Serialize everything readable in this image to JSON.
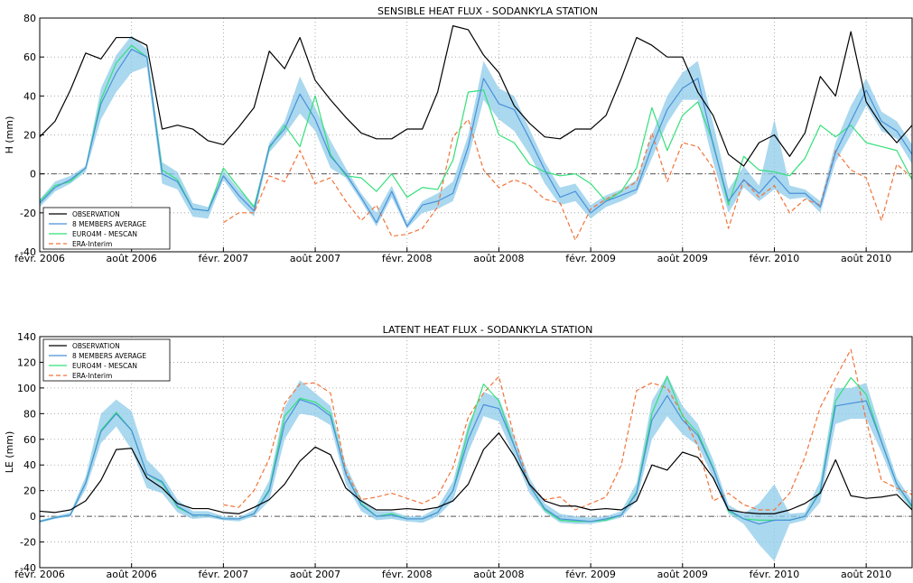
{
  "chart_data": [
    {
      "type": "line",
      "title": "SENSIBLE HEAT FLUX - SODANKYLA STATION",
      "xlabel": "",
      "ylabel": "H (mm)",
      "ylim": [
        -40,
        80
      ],
      "yticks": [
        -40,
        -20,
        0,
        20,
        40,
        60,
        80
      ],
      "x_range": [
        2006.0833,
        2010.8333
      ],
      "xticks": [
        {
          "x": 2006.0833,
          "label": "févr. 2006"
        },
        {
          "x": 2006.5833,
          "label": "août 2006"
        },
        {
          "x": 2007.0833,
          "label": "févr. 2007"
        },
        {
          "x": 2007.5833,
          "label": "août 2007"
        },
        {
          "x": 2008.0833,
          "label": "févr. 2008"
        },
        {
          "x": 2008.5833,
          "label": "août 2008"
        },
        {
          "x": 2009.0833,
          "label": "févr. 2009"
        },
        {
          "x": 2009.5833,
          "label": "août 2009"
        },
        {
          "x": 2010.0833,
          "label": "févr. 2010"
        },
        {
          "x": 2010.5833,
          "label": "août 2010"
        }
      ],
      "grid": true,
      "zero_line": true,
      "legend_position": "lower-left",
      "legend": [
        "OBSERVATION",
        "8 MEMBERS AVERAGE",
        "EURO4M - MESCAN",
        "ERA-Interim"
      ],
      "series": [
        {
          "name": "OBSERVATION",
          "color": "#000000",
          "style": "solid",
          "x_start": 2006.0833,
          "values": [
            19,
            27,
            43,
            62,
            59,
            70,
            70,
            66,
            23,
            25,
            23,
            17,
            15,
            24,
            34,
            63,
            54,
            70,
            48,
            38,
            29,
            21,
            18,
            18,
            23,
            23,
            42,
            76,
            74,
            61,
            52,
            35,
            26,
            19,
            18,
            23,
            23,
            30,
            49,
            70,
            66,
            60,
            60,
            42,
            30,
            10,
            4,
            16,
            20,
            9,
            21,
            50,
            40,
            73,
            37,
            25,
            16,
            25,
            13
          ]
        },
        {
          "name": "8 MEMBERS AVERAGE",
          "color": "#4a90d9",
          "style": "solid",
          "x_start": 2006.0833,
          "band_lower": [
            -17,
            -9,
            -5,
            1,
            28,
            42,
            52,
            55,
            -5,
            -8,
            -22,
            -23,
            -3,
            -14,
            -22,
            11,
            20,
            31,
            22,
            3,
            -2,
            -14,
            -27,
            -12,
            -28,
            -20,
            -18,
            -14,
            8,
            38,
            28,
            22,
            10,
            -5,
            -16,
            -14,
            -23,
            -17,
            -14,
            -10,
            8,
            26,
            38,
            38,
            6,
            -20,
            -7,
            -14,
            -8,
            -13,
            -12,
            -20,
            6,
            20,
            35,
            22,
            18,
            5,
            -24,
            -14,
            -12
          ],
          "band_upper": [
            -13,
            -4,
            -1,
            4,
            44,
            61,
            71,
            64,
            6,
            1,
            -15,
            -17,
            2,
            -8,
            -16,
            16,
            27,
            50,
            34,
            17,
            3,
            -10,
            -20,
            -6,
            -25,
            -14,
            -10,
            -4,
            20,
            58,
            44,
            40,
            23,
            6,
            -7,
            -5,
            -16,
            -11,
            -8,
            -3,
            20,
            40,
            52,
            58,
            26,
            -8,
            4,
            -6,
            28,
            -6,
            -8,
            -14,
            16,
            35,
            49,
            32,
            27,
            15,
            -16,
            -6,
            -7
          ],
          "values": [
            -15,
            -7,
            -3,
            3,
            36,
            52,
            64,
            60,
            0,
            -4,
            -18,
            -19,
            -1,
            -11,
            -19,
            14,
            23,
            41,
            28,
            9,
            0,
            -12,
            -25,
            -9,
            -27,
            -16,
            -14,
            -10,
            14,
            49,
            36,
            33,
            18,
            2,
            -12,
            -9,
            -20,
            -14,
            -11,
            -8,
            14,
            33,
            44,
            49,
            15,
            -14,
            -3,
            -10,
            -1,
            -10,
            -10,
            -17,
            11,
            27,
            43,
            27,
            22,
            10,
            -20,
            -10,
            -10
          ]
        },
        {
          "name": "EURO4M - MESCAN",
          "color": "#33e07a",
          "style": "solid",
          "x_start": 2006.0833,
          "values": [
            -14,
            -6,
            -4,
            3,
            38,
            57,
            66,
            60,
            2,
            -3,
            -18,
            -19,
            3,
            -7,
            -17,
            13,
            25,
            14,
            40,
            10,
            -1,
            -2,
            -9,
            0,
            -12,
            -7,
            -8,
            7,
            42,
            43,
            20,
            16,
            5,
            1,
            -1,
            0,
            -5,
            -14,
            -9,
            3,
            34,
            12,
            30,
            37,
            16,
            -16,
            9,
            2,
            1,
            -1,
            8,
            25,
            19,
            25,
            16,
            14,
            12,
            -3,
            0,
            -1
          ]
        },
        {
          "name": "ERA-Interim",
          "color": "#f2733a",
          "style": "dashed",
          "x_start": 2007.0833,
          "values": [
            -25,
            -20,
            -20,
            -1,
            -4,
            12,
            -5,
            -2,
            -14,
            -24,
            -16,
            -32,
            -31,
            -28,
            -17,
            19,
            28,
            2,
            -7,
            -3,
            -6,
            -13,
            -15,
            -34,
            -18,
            -13,
            -9,
            -4,
            21,
            -4,
            16,
            14,
            3,
            -28,
            -3,
            -12,
            -6,
            -20,
            -13,
            -16,
            12,
            2,
            -2,
            -24,
            5,
            -2,
            -22,
            10,
            -1
          ]
        }
      ]
    },
    {
      "type": "line",
      "title": "LATENT HEAT FLUX - SODANKYLA STATION",
      "xlabel": "",
      "ylabel": "LE (mm)",
      "ylim": [
        -40,
        140
      ],
      "yticks": [
        -40,
        -20,
        0,
        20,
        40,
        60,
        80,
        100,
        120,
        140
      ],
      "x_range": [
        2006.0833,
        2010.8333
      ],
      "xticks": [
        {
          "x": 2006.0833,
          "label": "févr. 2006"
        },
        {
          "x": 2006.5833,
          "label": "août 2006"
        },
        {
          "x": 2007.0833,
          "label": "févr. 2007"
        },
        {
          "x": 2007.5833,
          "label": "août 2007"
        },
        {
          "x": 2008.0833,
          "label": "févr. 2008"
        },
        {
          "x": 2008.5833,
          "label": "août 2008"
        },
        {
          "x": 2009.0833,
          "label": "févr. 2009"
        },
        {
          "x": 2009.5833,
          "label": "août 2009"
        },
        {
          "x": 2010.0833,
          "label": "févr. 2010"
        },
        {
          "x": 2010.5833,
          "label": "août 2010"
        }
      ],
      "grid": true,
      "zero_line": true,
      "legend_position": "upper-left",
      "legend": [
        "OBSERVATION",
        "8 MEMBERS AVERAGE",
        "EURO4M - MESCAN",
        "ERA-Interim"
      ],
      "series": [
        {
          "name": "OBSERVATION",
          "color": "#000000",
          "style": "solid",
          "x_start": 2006.0833,
          "values": [
            4,
            3,
            5,
            12,
            28,
            52,
            53,
            30,
            22,
            10,
            6,
            6,
            3,
            2,
            7,
            13,
            25,
            43,
            54,
            48,
            22,
            12,
            5,
            5,
            6,
            5,
            7,
            12,
            25,
            52,
            65,
            47,
            25,
            12,
            8,
            8,
            5,
            6,
            5,
            12,
            40,
            36,
            50,
            46,
            30,
            5,
            3,
            2,
            2,
            5,
            10,
            18,
            44,
            16,
            14,
            15,
            17,
            5,
            4
          ]
        },
        {
          "name": "8 MEMBERS AVERAGE",
          "color": "#4a90d9",
          "style": "solid",
          "x_start": 2006.0833,
          "band_lower": [
            -5,
            -2,
            0,
            21,
            57,
            70,
            52,
            22,
            18,
            3,
            -2,
            -1,
            -3,
            -4,
            0,
            12,
            60,
            80,
            78,
            71,
            25,
            4,
            -3,
            -2,
            -4,
            -5,
            0,
            12,
            50,
            78,
            74,
            47,
            18,
            3,
            -5,
            -6,
            -6,
            -4,
            -1,
            12,
            60,
            78,
            64,
            55,
            30,
            2,
            -6,
            -22,
            -35,
            -6,
            -3,
            11,
            72,
            76,
            76,
            50,
            20,
            5,
            -3
          ],
          "band_upper": [
            -3,
            0,
            3,
            31,
            80,
            91,
            82,
            44,
            32,
            13,
            4,
            4,
            0,
            -1,
            5,
            28,
            85,
            106,
            96,
            86,
            40,
            14,
            4,
            4,
            0,
            0,
            7,
            27,
            72,
            97,
            92,
            62,
            30,
            10,
            2,
            0,
            -1,
            0,
            4,
            26,
            90,
            110,
            86,
            72,
            44,
            9,
            2,
            10,
            25,
            2,
            3,
            28,
            100,
            100,
            104,
            66,
            30,
            12,
            3
          ],
          "values": [
            -4,
            -1,
            1,
            26,
            66,
            80,
            67,
            33,
            27,
            8,
            1,
            1,
            -2,
            -2,
            2,
            20,
            72,
            91,
            87,
            78,
            33,
            9,
            0,
            1,
            -2,
            -2,
            3,
            20,
            60,
            87,
            84,
            55,
            24,
            6,
            -2,
            -3,
            -4,
            -2,
            1,
            18,
            75,
            94,
            75,
            63,
            37,
            5,
            -2,
            -6,
            -3,
            -3,
            0,
            19,
            86,
            88,
            90,
            58,
            25,
            8,
            -1
          ]
        },
        {
          "name": "EURO4M - MESCAN",
          "color": "#33e07a",
          "style": "solid",
          "x_start": 2006.0833,
          "values": [
            -4,
            -1,
            1,
            26,
            67,
            81,
            67,
            33,
            26,
            7,
            1,
            1,
            -2,
            -2,
            2,
            21,
            78,
            92,
            89,
            80,
            33,
            10,
            0,
            2,
            -2,
            -2,
            3,
            20,
            67,
            103,
            90,
            55,
            24,
            5,
            -3,
            -4,
            -4,
            -3,
            1,
            19,
            80,
            109,
            78,
            65,
            38,
            4,
            -2,
            -3,
            -3,
            -3,
            0,
            20,
            90,
            108,
            95,
            58,
            25,
            7,
            -2
          ]
        },
        {
          "name": "ERA-Interim",
          "color": "#f2733a",
          "style": "dashed",
          "x_start": 2007.0833,
          "values": [
            9,
            7,
            20,
            45,
            88,
            103,
            104,
            96,
            35,
            13,
            15,
            18,
            14,
            10,
            16,
            38,
            77,
            96,
            109,
            62,
            24,
            13,
            15,
            5,
            10,
            15,
            40,
            98,
            104,
            100,
            79,
            55,
            12,
            18,
            9,
            5,
            5,
            18,
            46,
            85,
            108,
            130,
            75,
            28,
            22,
            17
          ]
        }
      ]
    }
  ]
}
